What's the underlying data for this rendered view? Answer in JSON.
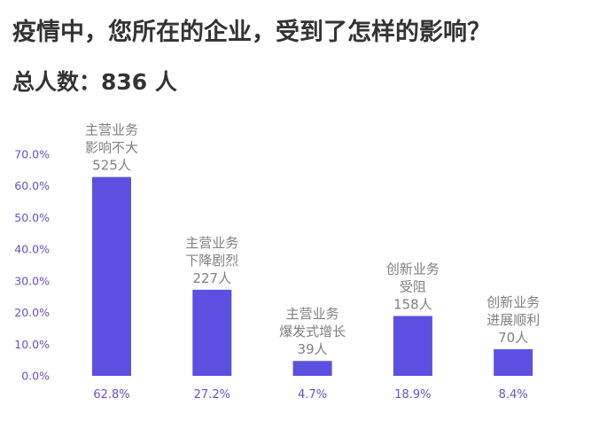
{
  "header": {
    "title": "疫情中，您所在的企业，受到了怎样的影响？",
    "subtitle": "总人数：836 人"
  },
  "colors": {
    "bar": "#5b50e0",
    "axis_text": "#6a4fcf",
    "annotation_text": "#808080",
    "title_text": "#333333"
  },
  "chart_data": {
    "type": "bar",
    "title": "疫情中，您所在的企业，受到了怎样的影响？",
    "subtitle": "总人数：836 人",
    "categories": [
      [
        "主营业务",
        "影响不大"
      ],
      [
        "主营业务",
        "下降剧烈"
      ],
      [
        "主营业务",
        "爆发式增长"
      ],
      [
        "创新业务",
        "受阻"
      ],
      [
        "创新业务",
        "进展顺利"
      ]
    ],
    "counts": [
      "525人",
      "227人",
      "39人",
      "158人",
      "70人"
    ],
    "values": [
      62.8,
      27.2,
      4.7,
      18.9,
      8.4
    ],
    "value_labels": [
      "62.8%",
      "27.2%",
      "4.7%",
      "18.9%",
      "8.4%"
    ],
    "yticks": [
      "0.0%",
      "10.0%",
      "20.0%",
      "30.0%",
      "40.0%",
      "50.0%",
      "60.0%",
      "70.0%"
    ],
    "ylim": [
      0,
      70
    ],
    "xlabel": "",
    "ylabel": "",
    "grid": false
  }
}
